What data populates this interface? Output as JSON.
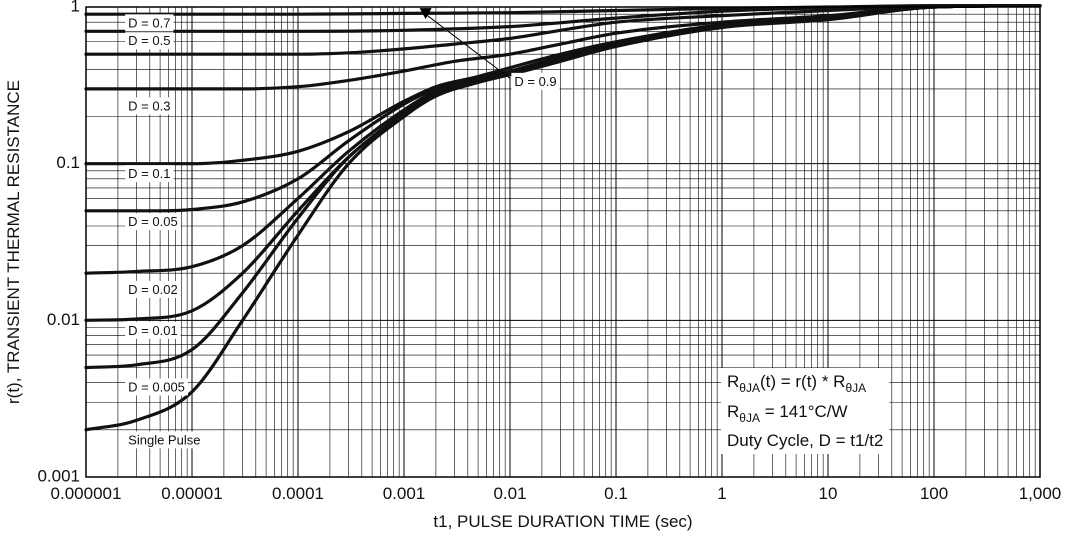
{
  "chart_data": {
    "type": "line",
    "x_scale": "log",
    "y_scale": "log",
    "xlim": [
      1e-06,
      1000
    ],
    "ylim": [
      0.001,
      1
    ],
    "grid": true,
    "xlabel": "t1, PULSE DURATION TIME (sec)",
    "ylabel": "r(t), TRANSIENT THERMAL RESISTANCE",
    "x_ticks": [
      {
        "value": 1e-06,
        "label": "0.000001"
      },
      {
        "value": 1e-05,
        "label": "0.00001"
      },
      {
        "value": 0.0001,
        "label": "0.0001"
      },
      {
        "value": 0.001,
        "label": "0.001"
      },
      {
        "value": 0.01,
        "label": "0.01"
      },
      {
        "value": 0.1,
        "label": "0.1"
      },
      {
        "value": 1,
        "label": "1"
      },
      {
        "value": 10,
        "label": "10"
      },
      {
        "value": 100,
        "label": "100"
      },
      {
        "value": 1000,
        "label": "1,000"
      }
    ],
    "y_ticks": [
      {
        "value": 0.001,
        "label": "0.001"
      },
      {
        "value": 0.01,
        "label": "0.01"
      },
      {
        "value": 0.1,
        "label": "0.1"
      },
      {
        "value": 1,
        "label": "1"
      }
    ],
    "series": [
      {
        "name": "D = 0.9",
        "x": [
          1e-06,
          0.0001,
          0.001,
          0.01,
          0.1,
          1,
          10,
          100,
          1000
        ],
        "y": [
          0.9,
          0.9,
          0.91,
          0.92,
          0.95,
          0.98,
          1.0,
          1.02,
          1.02
        ]
      },
      {
        "name": "D = 0.7",
        "x": [
          1e-06,
          0.0001,
          0.001,
          0.01,
          0.1,
          1,
          10,
          100,
          1000
        ],
        "y": [
          0.7,
          0.7,
          0.71,
          0.75,
          0.85,
          0.94,
          0.99,
          1.02,
          1.02
        ]
      },
      {
        "name": "D = 0.5",
        "x": [
          1e-06,
          0.0001,
          0.0003,
          0.001,
          0.003,
          0.01,
          0.03,
          0.1,
          1,
          10,
          100,
          1000
        ],
        "y": [
          0.5,
          0.5,
          0.51,
          0.54,
          0.58,
          0.63,
          0.71,
          0.8,
          0.88,
          0.95,
          1.01,
          1.02
        ]
      },
      {
        "name": "D = 0.3",
        "x": [
          1e-06,
          3e-05,
          0.0001,
          0.0003,
          0.001,
          0.003,
          0.01,
          0.03,
          0.1,
          1,
          10,
          100,
          1000
        ],
        "y": [
          0.3,
          0.3,
          0.31,
          0.34,
          0.39,
          0.45,
          0.5,
          0.58,
          0.68,
          0.8,
          0.88,
          1.01,
          1.02
        ]
      },
      {
        "name": "D = 0.1",
        "x": [
          1e-06,
          1e-05,
          3e-05,
          0.0001,
          0.0003,
          0.001,
          0.002,
          0.005,
          0.01,
          0.03,
          0.1,
          1,
          10,
          100,
          1000
        ],
        "y": [
          0.1,
          0.1,
          0.105,
          0.12,
          0.16,
          0.25,
          0.31,
          0.36,
          0.41,
          0.5,
          0.6,
          0.77,
          0.85,
          1.0,
          1.02
        ]
      },
      {
        "name": "D = 0.05",
        "x": [
          1e-06,
          5e-06,
          1e-05,
          3e-05,
          0.0001,
          0.0003,
          0.001,
          0.002,
          0.005,
          0.01,
          0.03,
          0.1,
          1,
          10,
          100,
          1000
        ],
        "y": [
          0.05,
          0.05,
          0.051,
          0.057,
          0.08,
          0.14,
          0.24,
          0.3,
          0.35,
          0.39,
          0.48,
          0.58,
          0.76,
          0.84,
          1.0,
          1.02
        ]
      },
      {
        "name": "D = 0.02",
        "x": [
          1e-06,
          3e-06,
          1e-05,
          3e-05,
          0.0001,
          0.0003,
          0.001,
          0.002,
          0.005,
          0.01,
          0.03,
          0.1,
          1,
          10,
          100,
          1000
        ],
        "y": [
          0.02,
          0.0205,
          0.022,
          0.03,
          0.06,
          0.12,
          0.22,
          0.29,
          0.34,
          0.38,
          0.47,
          0.57,
          0.76,
          0.84,
          1.0,
          1.02
        ]
      },
      {
        "name": "D = 0.01",
        "x": [
          1e-06,
          3e-06,
          1e-05,
          3e-05,
          0.0001,
          0.0003,
          0.001,
          0.002,
          0.005,
          0.01,
          0.03,
          0.1,
          1,
          10,
          100,
          1000
        ],
        "y": [
          0.01,
          0.0102,
          0.0115,
          0.02,
          0.05,
          0.11,
          0.21,
          0.28,
          0.34,
          0.38,
          0.47,
          0.57,
          0.75,
          0.84,
          1.0,
          1.02
        ]
      },
      {
        "name": "D = 0.005",
        "x": [
          1e-06,
          3e-06,
          1e-05,
          3e-05,
          0.0001,
          0.0003,
          0.001,
          0.002,
          0.005,
          0.01,
          0.03,
          0.1,
          1,
          10,
          100,
          1000
        ],
        "y": [
          0.005,
          0.0052,
          0.0065,
          0.015,
          0.045,
          0.11,
          0.2,
          0.28,
          0.34,
          0.38,
          0.46,
          0.57,
          0.75,
          0.84,
          1.0,
          1.02
        ]
      },
      {
        "name": "Single Pulse",
        "x": [
          1e-06,
          3e-06,
          1e-05,
          3e-05,
          0.0001,
          0.0003,
          0.001,
          0.002,
          0.005,
          0.01,
          0.03,
          0.1,
          1,
          10,
          100,
          1000
        ],
        "y": [
          0.002,
          0.0023,
          0.0035,
          0.01,
          0.035,
          0.1,
          0.2,
          0.27,
          0.33,
          0.37,
          0.45,
          0.56,
          0.74,
          0.83,
          1.0,
          1.02
        ]
      }
    ],
    "curve_labels": [
      {
        "text": "D = 0.7",
        "x": 2.5e-06,
        "y": 0.78
      },
      {
        "text": "D = 0.5",
        "x": 2.5e-06,
        "y": 0.6
      },
      {
        "text": "D = 0.3",
        "x": 2.5e-06,
        "y": 0.23
      },
      {
        "text": "D = 0.1",
        "x": 2.5e-06,
        "y": 0.085
      },
      {
        "text": "D = 0.05",
        "x": 2.5e-06,
        "y": 0.042
      },
      {
        "text": "D = 0.02",
        "x": 2.5e-06,
        "y": 0.0155
      },
      {
        "text": "D = 0.01",
        "x": 2.5e-06,
        "y": 0.0085
      },
      {
        "text": "D = 0.005",
        "x": 2.5e-06,
        "y": 0.0037
      },
      {
        "text": "Single Pulse",
        "x": 2.5e-06,
        "y": 0.0017
      },
      {
        "text": "D = 0.9",
        "x": 0.011,
        "y": 0.33
      }
    ],
    "d09_pointer": {
      "from_x": 0.01,
      "from_y": 0.35,
      "to_x": 0.0016,
      "to_y": 0.9
    },
    "annotation": {
      "line1": {
        "a": "R",
        "a_sub": "θJA",
        "b": "(t) = r(t) * R",
        "b_sub": "θJA"
      },
      "line2": {
        "a": "R",
        "a_sub": "θJA",
        "b": " = 141°C/W"
      },
      "line3": "Duty Cycle, D = t1/t2",
      "placement": "bottom-right"
    }
  }
}
